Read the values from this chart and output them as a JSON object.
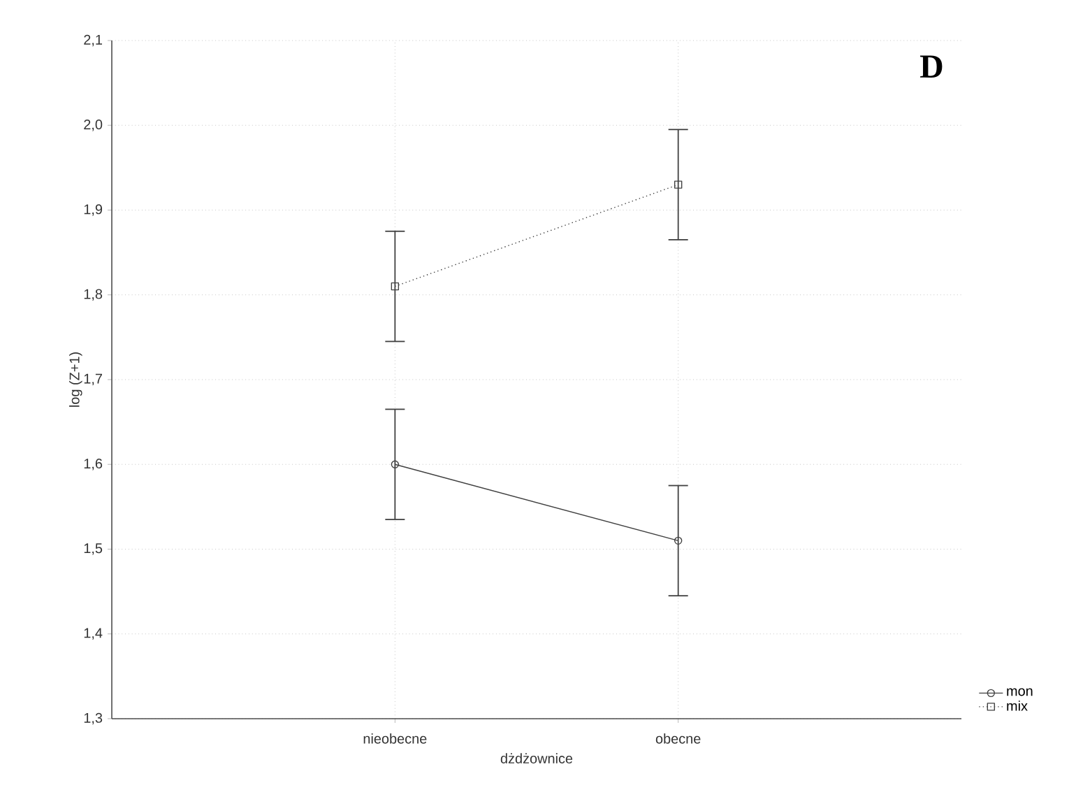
{
  "chart_data": {
    "type": "line",
    "xlabel": "dżdżownice",
    "ylabel": "log (Z+1)",
    "categories": [
      "nieobecne",
      "obecne"
    ],
    "series": [
      {
        "name": "mon",
        "color": "#404040",
        "values": [
          1.6,
          1.51
        ],
        "errors": [
          0.065,
          0.065
        ],
        "marker": "circle",
        "line_style": "solid"
      },
      {
        "name": "mix",
        "color": "#404040",
        "values": [
          1.81,
          1.93
        ],
        "errors": [
          0.065,
          0.065
        ],
        "marker": "square",
        "line_style": "dotted"
      }
    ],
    "ylim": [
      1.3,
      2.1
    ],
    "yticks": [
      {
        "value": 1.3,
        "label": "1,3"
      },
      {
        "value": 1.4,
        "label": "1,4"
      },
      {
        "value": 1.5,
        "label": "1,5"
      },
      {
        "value": 1.6,
        "label": "1,6"
      },
      {
        "value": 1.7,
        "label": "1,7"
      },
      {
        "value": 1.8,
        "label": "1,8"
      },
      {
        "value": 1.9,
        "label": "1,9"
      },
      {
        "value": 2.0,
        "label": "2,0"
      },
      {
        "value": 2.1,
        "label": "2,1"
      }
    ],
    "grid": true,
    "legend": "bottom right",
    "annotations": [
      "D"
    ]
  }
}
